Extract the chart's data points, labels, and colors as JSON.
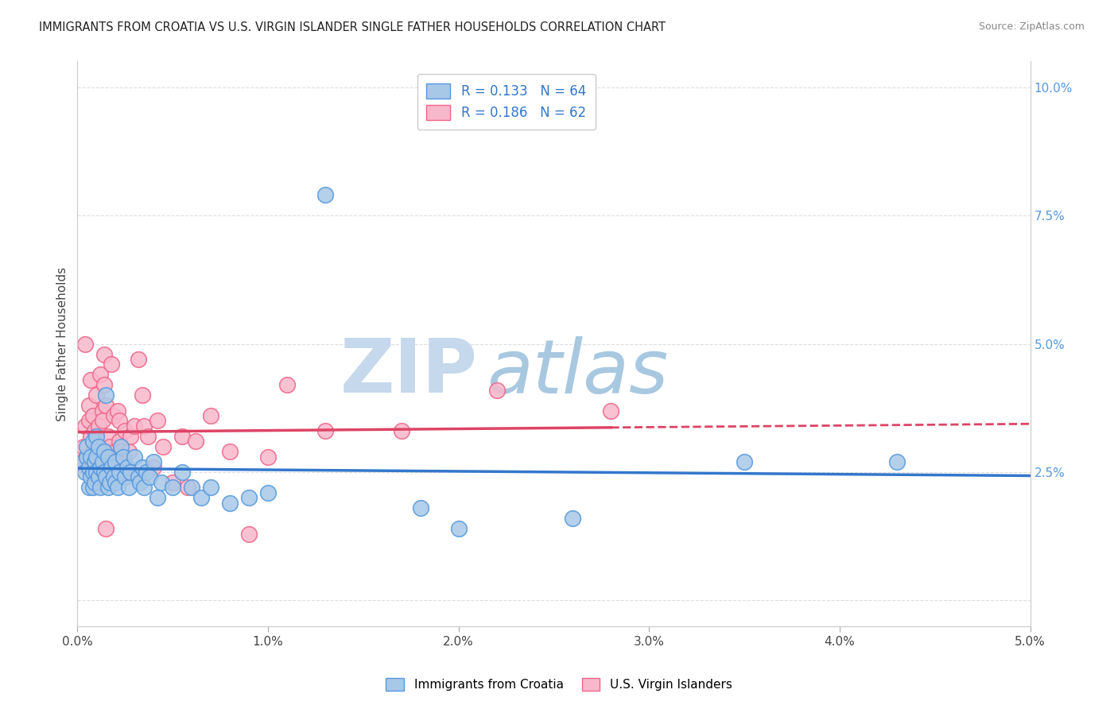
{
  "title": "IMMIGRANTS FROM CROATIA VS U.S. VIRGIN ISLANDER SINGLE FATHER HOUSEHOLDS CORRELATION CHART",
  "source": "Source: ZipAtlas.com",
  "ylabel": "Single Father Households",
  "xlim": [
    0.0,
    0.05
  ],
  "ylim": [
    -0.005,
    0.105
  ],
  "xticks": [
    0.0,
    0.01,
    0.02,
    0.03,
    0.04,
    0.05
  ],
  "xticklabels": [
    "0.0%",
    "1.0%",
    "2.0%",
    "3.0%",
    "4.0%",
    "5.0%"
  ],
  "yticks_right": [
    0.0,
    0.025,
    0.05,
    0.075,
    0.1
  ],
  "yticklabels_right": [
    "",
    "2.5%",
    "5.0%",
    "7.5%",
    "10.0%"
  ],
  "blue_color": "#a8c8e8",
  "pink_color": "#f8b8cc",
  "blue_edge_color": "#5599dd",
  "pink_edge_color": "#ee6688",
  "blue_line_color": "#3377cc",
  "pink_line_color": "#dd4466",
  "blue_scatter": [
    [
      0.0003,
      0.027
    ],
    [
      0.0004,
      0.025
    ],
    [
      0.0005,
      0.028
    ],
    [
      0.0005,
      0.03
    ],
    [
      0.0006,
      0.022
    ],
    [
      0.0006,
      0.026
    ],
    [
      0.0007,
      0.028
    ],
    [
      0.0007,
      0.024
    ],
    [
      0.0008,
      0.031
    ],
    [
      0.0008,
      0.025
    ],
    [
      0.0008,
      0.022
    ],
    [
      0.0009,
      0.027
    ],
    [
      0.0009,
      0.023
    ],
    [
      0.001,
      0.028
    ],
    [
      0.001,
      0.025
    ],
    [
      0.001,
      0.032
    ],
    [
      0.0011,
      0.024
    ],
    [
      0.0011,
      0.03
    ],
    [
      0.0012,
      0.026
    ],
    [
      0.0012,
      0.022
    ],
    [
      0.0013,
      0.027
    ],
    [
      0.0014,
      0.025
    ],
    [
      0.0014,
      0.029
    ],
    [
      0.0015,
      0.04
    ],
    [
      0.0015,
      0.024
    ],
    [
      0.0016,
      0.022
    ],
    [
      0.0016,
      0.028
    ],
    [
      0.0017,
      0.023
    ],
    [
      0.0018,
      0.026
    ],
    [
      0.0019,
      0.024
    ],
    [
      0.002,
      0.027
    ],
    [
      0.002,
      0.023
    ],
    [
      0.0021,
      0.022
    ],
    [
      0.0022,
      0.025
    ],
    [
      0.0023,
      0.03
    ],
    [
      0.0024,
      0.028
    ],
    [
      0.0025,
      0.024
    ],
    [
      0.0026,
      0.026
    ],
    [
      0.0027,
      0.022
    ],
    [
      0.0028,
      0.025
    ],
    [
      0.003,
      0.028
    ],
    [
      0.0032,
      0.024
    ],
    [
      0.0033,
      0.023
    ],
    [
      0.0034,
      0.026
    ],
    [
      0.0035,
      0.022
    ],
    [
      0.0036,
      0.025
    ],
    [
      0.0038,
      0.024
    ],
    [
      0.004,
      0.027
    ],
    [
      0.0042,
      0.02
    ],
    [
      0.0044,
      0.023
    ],
    [
      0.005,
      0.022
    ],
    [
      0.0055,
      0.025
    ],
    [
      0.006,
      0.022
    ],
    [
      0.0065,
      0.02
    ],
    [
      0.007,
      0.022
    ],
    [
      0.008,
      0.019
    ],
    [
      0.009,
      0.02
    ],
    [
      0.01,
      0.021
    ],
    [
      0.013,
      0.079
    ],
    [
      0.018,
      0.018
    ],
    [
      0.02,
      0.014
    ],
    [
      0.026,
      0.016
    ],
    [
      0.035,
      0.027
    ],
    [
      0.043,
      0.027
    ]
  ],
  "pink_scatter": [
    [
      0.0002,
      0.027
    ],
    [
      0.0003,
      0.03
    ],
    [
      0.0004,
      0.034
    ],
    [
      0.0004,
      0.05
    ],
    [
      0.0005,
      0.026
    ],
    [
      0.0005,
      0.028
    ],
    [
      0.0006,
      0.038
    ],
    [
      0.0006,
      0.035
    ],
    [
      0.0007,
      0.043
    ],
    [
      0.0007,
      0.032
    ],
    [
      0.0008,
      0.036
    ],
    [
      0.0008,
      0.029
    ],
    [
      0.0009,
      0.033
    ],
    [
      0.0009,
      0.026
    ],
    [
      0.001,
      0.03
    ],
    [
      0.001,
      0.04
    ],
    [
      0.0011,
      0.034
    ],
    [
      0.0012,
      0.044
    ],
    [
      0.0012,
      0.028
    ],
    [
      0.0013,
      0.037
    ],
    [
      0.0013,
      0.035
    ],
    [
      0.0014,
      0.042
    ],
    [
      0.0014,
      0.048
    ],
    [
      0.0015,
      0.038
    ],
    [
      0.0016,
      0.032
    ],
    [
      0.0017,
      0.028
    ],
    [
      0.0017,
      0.03
    ],
    [
      0.0018,
      0.046
    ],
    [
      0.0019,
      0.036
    ],
    [
      0.0019,
      0.027
    ],
    [
      0.002,
      0.029
    ],
    [
      0.0021,
      0.037
    ],
    [
      0.0022,
      0.031
    ],
    [
      0.0022,
      0.035
    ],
    [
      0.0023,
      0.029
    ],
    [
      0.0024,
      0.027
    ],
    [
      0.0025,
      0.033
    ],
    [
      0.0026,
      0.025
    ],
    [
      0.0027,
      0.029
    ],
    [
      0.0028,
      0.032
    ],
    [
      0.003,
      0.034
    ],
    [
      0.0032,
      0.047
    ],
    [
      0.0034,
      0.04
    ],
    [
      0.0035,
      0.034
    ],
    [
      0.0037,
      0.032
    ],
    [
      0.004,
      0.026
    ],
    [
      0.0042,
      0.035
    ],
    [
      0.0045,
      0.03
    ],
    [
      0.005,
      0.023
    ],
    [
      0.0055,
      0.032
    ],
    [
      0.0058,
      0.022
    ],
    [
      0.0062,
      0.031
    ],
    [
      0.007,
      0.036
    ],
    [
      0.008,
      0.029
    ],
    [
      0.009,
      0.013
    ],
    [
      0.01,
      0.028
    ],
    [
      0.0015,
      0.014
    ],
    [
      0.011,
      0.042
    ],
    [
      0.013,
      0.033
    ],
    [
      0.017,
      0.033
    ],
    [
      0.022,
      0.041
    ],
    [
      0.028,
      0.037
    ]
  ],
  "blue_R": 0.133,
  "blue_N": 64,
  "pink_R": 0.186,
  "pink_N": 62,
  "watermark_zip": "ZIP",
  "watermark_atlas": "atlas",
  "watermark_color_zip": "#c5d8ec",
  "watermark_color_atlas": "#a8c8e0",
  "legend_blue_label": "Immigrants from Croatia",
  "legend_pink_label": "U.S. Virgin Islanders",
  "grid_color": "#dddddd",
  "spine_color": "#cccccc"
}
